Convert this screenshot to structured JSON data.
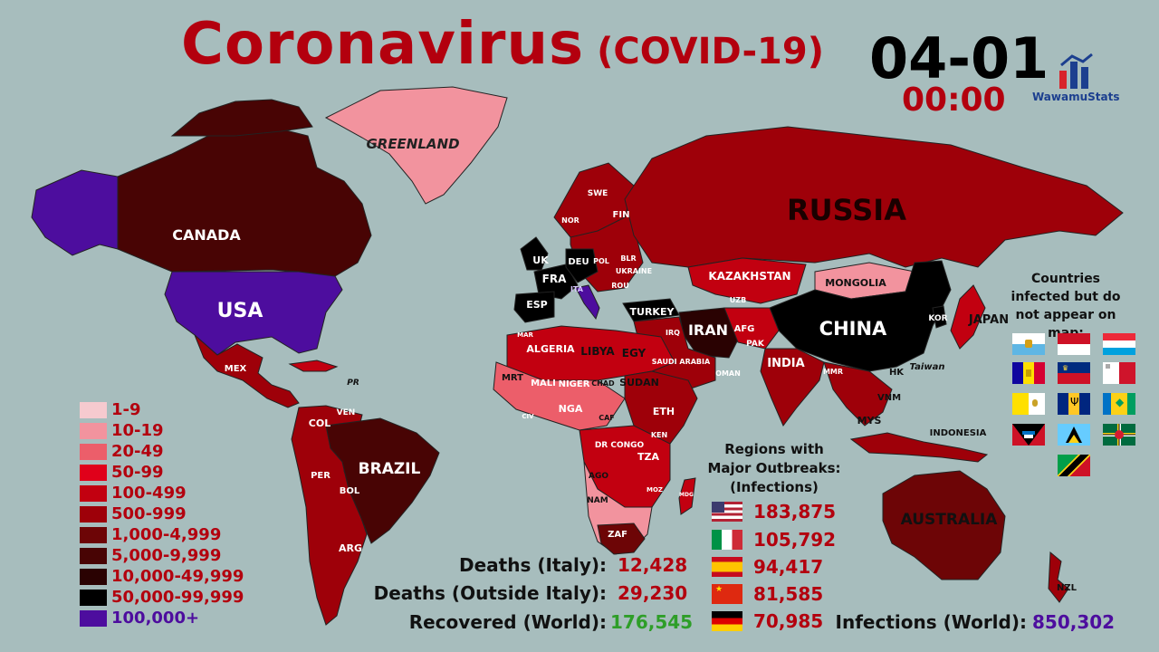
{
  "title": {
    "main": "Coronavirus",
    "sub": "(COVID-19)"
  },
  "date": "04-01",
  "time": "00:00",
  "logo": {
    "text": "WawamuStats"
  },
  "legend": [
    {
      "label": "1-9",
      "color": "#f6cacf"
    },
    {
      "label": "10-19",
      "color": "#f2939e"
    },
    {
      "label": "20-49",
      "color": "#ec5e6a"
    },
    {
      "label": "50-99",
      "color": "#e0001a"
    },
    {
      "label": "100-499",
      "color": "#c20010"
    },
    {
      "label": "500-999",
      "color": "#9e0009"
    },
    {
      "label": "1,000-4,999",
      "color": "#6d0506"
    },
    {
      "label": "5,000-9,999",
      "color": "#480404"
    },
    {
      "label": "10,000-49,999",
      "color": "#2a0202"
    },
    {
      "label": "50,000-99,999",
      "color": "#000000"
    },
    {
      "label": "100,000+",
      "color": "#4d0d9e"
    }
  ],
  "map_labels": {
    "greenland": "GREENLAND",
    "canada": "CANADA",
    "usa": "USA",
    "brazil": "BRAZIL",
    "russia": "RUSSIA",
    "china": "CHINA",
    "australia": "AUSTRALIA",
    "iran": "IRAN",
    "kazakhstan": "KAZAKHSTAN",
    "mongolia": "MONGOLIA",
    "japan": "JAPAN",
    "india": "INDIA",
    "turkey": "TURKEY",
    "indonesia": "INDONESIA",
    "algeria": "ALGERIA",
    "libya": "LIBYA",
    "egypt": "EGY",
    "sudan": "SUDAN",
    "mali": "MALI",
    "niger": "NIGER",
    "chad": "CHAD",
    "mauritania": "MRT",
    "nigeria": "NGA",
    "ethiopia": "ETH",
    "dr_congo": "DR CONGO",
    "tanzania": "TZA",
    "kenya": "KEN",
    "angola": "AGO",
    "namibia": "NAM",
    "south_africa": "ZAF",
    "car": "CAF",
    "uk": "UK",
    "france": "FRA",
    "germany": "DEU",
    "spain": "ESP",
    "italy": "ITA",
    "poland": "POL",
    "ukraine": "UKRAINE",
    "belarus": "BLR",
    "romania": "ROU",
    "finland": "FIN",
    "sweden": "SWE",
    "norway": "NOR",
    "korea": "KOR",
    "hong_kong": "HK",
    "taiwan": "Taiwan",
    "vietnam": "VNM",
    "malaysia": "MYS",
    "myanmar": "MMR",
    "new_zealand": "NZL",
    "colombia": "COL",
    "venezuela": "VEN",
    "peru": "PER",
    "bolivia": "BOL",
    "argentina": "ARG",
    "mexico": "MEX",
    "puerto_rico": "PR",
    "afghanistan": "AFG",
    "pakistan": "PAK",
    "iraq": "IRQ",
    "saudi_arabia": "SAUDI ARABIA",
    "oman": "OMAN",
    "uzbekistan": "UZB",
    "cote_divoire": "CIV",
    "morocco": "MAR",
    "mozambique": "MOZ",
    "madagascar": "MDG"
  },
  "deaths_italy": {
    "label": "Deaths (Italy):",
    "value": "12,428"
  },
  "deaths_outside": {
    "label": "Deaths (Outside Italy):",
    "value": "29,230"
  },
  "recovered": {
    "label": "Recovered (World):",
    "value": "176,545"
  },
  "infections_world": {
    "label": "Infections (World):",
    "value": "850,302"
  },
  "major_outbreaks": {
    "title": "Regions with Major Outbreaks: (Infections)",
    "rows": [
      {
        "flag": "usa-flag-icon",
        "value": "183,875"
      },
      {
        "flag": "italy-flag-icon",
        "value": "105,792"
      },
      {
        "flag": "spain-flag-icon",
        "value": "94,417"
      },
      {
        "flag": "china-flag-icon",
        "value": "81,585"
      },
      {
        "flag": "germany-flag-icon",
        "value": "70,985"
      }
    ]
  },
  "not_on_map": {
    "title": "Countries infected but do not appear on map:",
    "flags": [
      "san-marino-flag-icon",
      "monaco-flag-icon",
      "luxembourg-flag-icon",
      "andorra-flag-icon",
      "liechtenstein-flag-icon",
      "malta-flag-icon",
      "vatican-flag-icon",
      "barbados-flag-icon",
      "saint-vincent-flag-icon",
      "antigua-flag-icon",
      "saint-lucia-flag-icon",
      "grenada-flag-icon",
      "dominica-flag-icon",
      "saint-kitts-flag-icon"
    ]
  },
  "colors": {
    "accent_red": "#b3000e",
    "purple": "#4d0d9e",
    "green": "#2e9e28",
    "water": "#a7bdbd"
  }
}
